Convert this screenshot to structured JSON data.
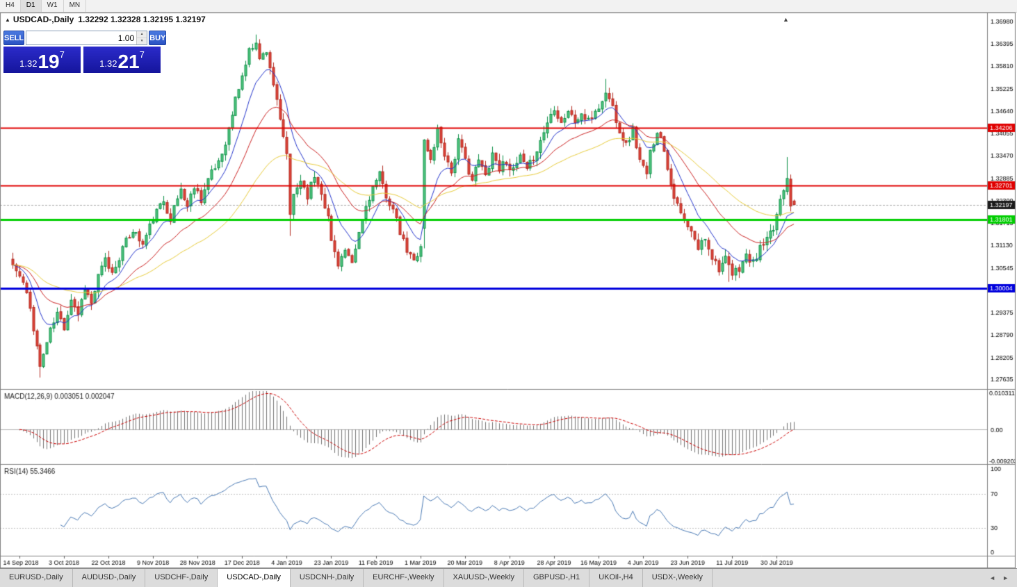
{
  "toolbar": {
    "timeframes": [
      {
        "label": "H4",
        "active": false
      },
      {
        "label": "D1",
        "active": true
      },
      {
        "label": "W1",
        "active": false
      },
      {
        "label": "MN",
        "active": false
      }
    ]
  },
  "chart": {
    "collapse_icon": "▲",
    "symbol": "USDCAD-,Daily",
    "ohlc": "1.32292 1.32328 1.32195 1.32197",
    "shift_marker_icon": "▲"
  },
  "trade_panel": {
    "sell_label": "SELL",
    "buy_label": "BUY",
    "volume": "1.00",
    "spin_up_icon": "▲",
    "spin_down_icon": "▼",
    "sell_price": {
      "prefix": "1.32",
      "big": "19",
      "sup": "7"
    },
    "buy_price": {
      "prefix": "1.32",
      "big": "21",
      "sup": "7"
    }
  },
  "chart_data": {
    "type": "candlestick",
    "symbol": "USDCAD",
    "timeframe": "Daily",
    "ohlc_current": {
      "open": 1.32292,
      "high": 1.32328,
      "low": 1.32195,
      "close": 1.32197
    },
    "bid": 1.32197,
    "ask": 1.32217,
    "price_scale_labels": [
      "1.36980",
      "1.36395",
      "1.35810",
      "1.35225",
      "1.34640",
      "1.34055",
      "1.33470",
      "1.32885",
      "1.32300",
      "1.31715",
      "1.31130",
      "1.30545",
      "1.29960",
      "1.29375",
      "1.28790",
      "1.28205",
      "1.27635"
    ],
    "hlines": [
      {
        "price": 1.34206,
        "label": "1.34206",
        "color": "#e00000",
        "width": 2
      },
      {
        "price": 1.32701,
        "label": "1.32701",
        "color": "#e00000",
        "width": 2
      },
      {
        "price": 1.31801,
        "label": "1.31801",
        "color": "#00ce00",
        "width": 3
      },
      {
        "price": 1.30004,
        "label": "1.30004",
        "color": "#0000dd",
        "width": 3
      }
    ],
    "current_price": {
      "value": 1.32197,
      "label": "1.32197",
      "tag_color": "#1a1a1a"
    },
    "x_labels": [
      "14 Sep 2018",
      "3 Oct 2018",
      "22 Oct 2018",
      "9 Nov 2018",
      "28 Nov 2018",
      "17 Dec 2018",
      "4 Jan 2019",
      "23 Jan 2019",
      "11 Feb 2019",
      "1 Mar 2019",
      "20 Mar 2019",
      "8 Apr 2019",
      "28 Apr 2019",
      "16 May 2019",
      "4 Jun 2019",
      "23 Jun 2019",
      "11 Jul 2019",
      "30 Jul 2019"
    ],
    "candles": {
      "count": 229,
      "seed": 11,
      "noise": 0.0011,
      "anchors": [
        [
          0,
          1.3062
        ],
        [
          3,
          1.3015
        ],
        [
          5,
          1.2948
        ],
        [
          7,
          1.285
        ],
        [
          8,
          1.2795
        ],
        [
          9,
          1.283
        ],
        [
          11,
          1.289
        ],
        [
          13,
          1.2935
        ],
        [
          15,
          1.29
        ],
        [
          17,
          1.2975
        ],
        [
          19,
          1.2935
        ],
        [
          21,
          1.3005
        ],
        [
          23,
          1.296
        ],
        [
          25,
          1.303
        ],
        [
          27,
          1.3075
        ],
        [
          29,
          1.304
        ],
        [
          32,
          1.3105
        ],
        [
          35,
          1.3155
        ],
        [
          38,
          1.3115
        ],
        [
          41,
          1.3185
        ],
        [
          44,
          1.323
        ],
        [
          46,
          1.3185
        ],
        [
          49,
          1.326
        ],
        [
          51,
          1.3215
        ],
        [
          53,
          1.327
        ],
        [
          55,
          1.3235
        ],
        [
          57,
          1.3285
        ],
        [
          59,
          1.3315
        ],
        [
          61,
          1.3355
        ],
        [
          63,
          1.3415
        ],
        [
          65,
          1.3495
        ],
        [
          67,
          1.3555
        ],
        [
          69,
          1.362
        ],
        [
          71,
          1.365
        ],
        [
          72,
          1.3598
        ],
        [
          74,
          1.3625
        ],
        [
          76,
          1.3535
        ],
        [
          78,
          1.3435
        ],
        [
          80,
          1.3355
        ],
        [
          81,
          1.3185
        ],
        [
          82,
          1.3245
        ],
        [
          84,
          1.3285
        ],
        [
          86,
          1.3245
        ],
        [
          88,
          1.3295
        ],
        [
          90,
          1.3255
        ],
        [
          92,
          1.3185
        ],
        [
          93,
          1.3125
        ],
        [
          95,
          1.3068
        ],
        [
          97,
          1.3098
        ],
        [
          99,
          1.3058
        ],
        [
          101,
          1.3145
        ],
        [
          103,
          1.3215
        ],
        [
          105,
          1.3265
        ],
        [
          107,
          1.3295
        ],
        [
          109,
          1.3245
        ],
        [
          111,
          1.3205
        ],
        [
          113,
          1.3145
        ],
        [
          115,
          1.3098
        ],
        [
          117,
          1.3072
        ],
        [
          119,
          1.3115
        ],
        [
          120,
          1.3385
        ],
        [
          122,
          1.3335
        ],
        [
          124,
          1.3415
        ],
        [
          126,
          1.3355
        ],
        [
          128,
          1.3305
        ],
        [
          130,
          1.3385
        ],
        [
          132,
          1.3335
        ],
        [
          134,
          1.3285
        ],
        [
          136,
          1.3335
        ],
        [
          138,
          1.3295
        ],
        [
          140,
          1.3355
        ],
        [
          142,
          1.3315
        ],
        [
          144,
          1.3335
        ],
        [
          146,
          1.3305
        ],
        [
          148,
          1.3345
        ],
        [
          150,
          1.3305
        ],
        [
          152,
          1.3345
        ],
        [
          154,
          1.3385
        ],
        [
          156,
          1.3435
        ],
        [
          158,
          1.3475
        ],
        [
          160,
          1.3435
        ],
        [
          162,
          1.3465
        ],
        [
          164,
          1.3435
        ],
        [
          166,
          1.3455
        ],
        [
          168,
          1.3435
        ],
        [
          170,
          1.3465
        ],
        [
          172,
          1.3485
        ],
        [
          173,
          1.3515
        ],
        [
          175,
          1.3475
        ],
        [
          177,
          1.3415
        ],
        [
          179,
          1.3375
        ],
        [
          181,
          1.3415
        ],
        [
          183,
          1.3335
        ],
        [
          185,
          1.3295
        ],
        [
          186,
          1.3355
        ],
        [
          188,
          1.3415
        ],
        [
          190,
          1.3365
        ],
        [
          192,
          1.3275
        ],
        [
          194,
          1.3215
        ],
        [
          196,
          1.3175
        ],
        [
          198,
          1.3145
        ],
        [
          200,
          1.3105
        ],
        [
          202,
          1.3135
        ],
        [
          204,
          1.3085
        ],
        [
          206,
          1.3055
        ],
        [
          208,
          1.3075
        ],
        [
          210,
          1.3035
        ],
        [
          212,
          1.3055
        ],
        [
          214,
          1.3085
        ],
        [
          216,
          1.3065
        ],
        [
          218,
          1.3105
        ],
        [
          220,
          1.3125
        ],
        [
          222,
          1.3155
        ],
        [
          224,
          1.3235
        ],
        [
          226,
          1.3295
        ],
        [
          227,
          1.3225
        ],
        [
          228,
          1.32197
        ]
      ],
      "forced": {
        "8": {
          "low": 1.2768
        },
        "71": {
          "high": 1.3664
        },
        "81": {
          "low": 1.3138
        },
        "120": {
          "open": 1.3158
        },
        "173": {
          "high": 1.3548
        },
        "209": {
          "low": 1.3018
        },
        "226": {
          "high": 1.3344
        },
        "228": {
          "open": 1.32292,
          "high": 1.32328,
          "low": 1.32195
        }
      },
      "colors": {
        "bull_fill": "#55c982",
        "bull_stroke": "#0b8f46",
        "bear_fill": "#e0443a",
        "bear_stroke": "#b22a20"
      }
    },
    "moving_averages": [
      {
        "type": "ema",
        "period": 10,
        "color": "#2233cc"
      },
      {
        "type": "ema",
        "period": 24,
        "color": "#cc2222"
      },
      {
        "type": "ema",
        "period": 52,
        "color": "#e8cc3a"
      }
    ],
    "macd": {
      "name": "MACD(12,26,9)",
      "values": "0.003051 0.002047",
      "fast": 12,
      "slow": 26,
      "signal": 9,
      "scale_max": 0.010311,
      "scale_min": -0.009203,
      "scale_labels": [
        "0.010311",
        "0.00",
        "-0.009203"
      ],
      "hist_color": "#737373",
      "signal_color": "#cc0000"
    },
    "rsi": {
      "name": "RSI(14)",
      "value": "55.3466",
      "period": 14,
      "levels": [
        70,
        30
      ],
      "scale_labels": [
        "100",
        "70",
        "30",
        "0"
      ],
      "line_color": "#4a7ab5",
      "level_color": "#c0c0c0"
    }
  },
  "bottom_tabs": {
    "scroll_left_icon": "◄",
    "scroll_right_icon": "►",
    "items": [
      {
        "label": "EURUSD-,Daily",
        "active": false
      },
      {
        "label": "AUDUSD-,Daily",
        "active": false
      },
      {
        "label": "USDCHF-,Daily",
        "active": false
      },
      {
        "label": "USDCAD-,Daily",
        "active": true
      },
      {
        "label": "USDCNH-,Daily",
        "active": false
      },
      {
        "label": "EURCHF-,Weekly",
        "active": false
      },
      {
        "label": "XAUUSD-,Weekly",
        "active": false
      },
      {
        "label": "GBPUSD-,H1",
        "active": false
      },
      {
        "label": "UKOil-,H4",
        "active": false
      },
      {
        "label": "USDX-,Weekly",
        "active": false
      }
    ]
  }
}
